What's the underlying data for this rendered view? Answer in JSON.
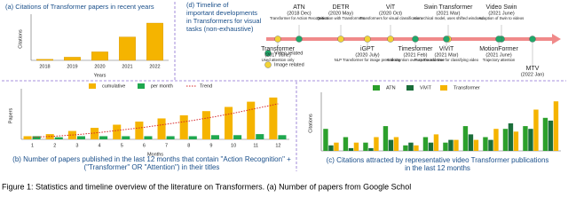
{
  "chart_data": [
    {
      "type": "bar",
      "title": "(a) Citations of Transformer papers in recent years",
      "categories": [
        "2018",
        "2019",
        "2020",
        "2021",
        "2022"
      ],
      "values": [
        0.5,
        1.5,
        4,
        11,
        17.5
      ],
      "color": "#f5b400",
      "ylim": [
        0,
        20
      ],
      "x_label": "Years",
      "y_label": "Citations"
    },
    {
      "type": "bar",
      "caption": [
        "(b) Number of papers published in the last 12 months that contain \"Action Recognition\" +",
        "(\"Transformer\" OR \"Attention\") in their titles"
      ],
      "categories": [
        "1",
        "2",
        "3",
        "4",
        "5",
        "6",
        "7",
        "8",
        "9",
        "10",
        "11",
        "12"
      ],
      "series": [
        {
          "name": "cumulative",
          "color": "#f5b400",
          "values": [
            3,
            5,
            8,
            11,
            14,
            17,
            20,
            23,
            27,
            31,
            36,
            40
          ]
        },
        {
          "name": "per month",
          "color": "#1fa84f",
          "values": [
            3,
            2,
            3,
            3,
            3,
            3,
            3,
            3,
            4,
            4,
            5,
            4
          ]
        },
        {
          "name": "Trend",
          "color": "#d62728",
          "type": "line",
          "values": [
            2,
            3,
            4.5,
            6.5,
            9,
            11.5,
            14.5,
            17.5,
            21,
            25,
            29.5,
            34
          ]
        }
      ],
      "ylim": [
        0,
        45
      ],
      "x_label": "Months",
      "y_label": "Papers"
    },
    {
      "type": "bar",
      "caption": [
        "(c) Citations attracted by representative video Transformer publications",
        "in the last 12 months"
      ],
      "categories": [
        null,
        null,
        null,
        null,
        null,
        null,
        null,
        null,
        null,
        null,
        null,
        null
      ],
      "series": [
        {
          "name": "ATN",
          "color": "#2ca02c",
          "values": [
            8,
            5,
            3,
            9,
            2,
            5,
            3,
            9,
            5,
            8,
            9,
            12
          ]
        },
        {
          "name": "ViViT",
          "color": "#1b6e3a",
          "values": [
            2,
            1,
            1,
            4,
            3,
            3,
            4,
            6,
            4,
            10,
            8,
            11
          ]
        },
        {
          "name": "Transformer",
          "color": "#f5b400",
          "values": [
            3,
            3,
            5,
            5,
            2,
            6,
            4,
            4,
            8,
            7,
            15,
            18
          ]
        }
      ],
      "ylim": [
        0,
        20
      ],
      "y_label": "Citations"
    }
  ],
  "timeline": {
    "title": [
      "(d)  Timeline of",
      "important developments",
      "in Transformers for visual",
      "tasks (non-exhaustive)"
    ],
    "legend": [
      {
        "label": "Video related",
        "color": "#1fa86a"
      },
      {
        "label": "Image related",
        "color": "#f2d335"
      }
    ],
    "events": [
      {
        "name": "Transformer",
        "date": "(2017 June)",
        "note": "Used attention only",
        "color": "#f2d335"
      },
      {
        "name": "ATN",
        "date": "(2018 Dec)",
        "note": "Transformer for Action Recognition",
        "color": "#1fa86a"
      },
      {
        "name": "DETR",
        "date": "(2020 May)",
        "note": "Detection with Transformers",
        "color": "#f2d335"
      },
      {
        "name": "iGPT",
        "date": "(2020 July)",
        "note": "NLP Transformer for image pre-training",
        "color": "#f2d335"
      },
      {
        "name": "ViT",
        "date": "(2020 Oct)",
        "note": "Transformers for visual classification",
        "color": "#f2d335"
      },
      {
        "name": "Timesformer",
        "date": "(2021 Feb)",
        "note": "Self-attention over space and time",
        "color": "#1fa86a"
      },
      {
        "name": "Swin Transformer",
        "date": "(2021 Mar)",
        "note": "Hierarchical model, uses shifted windows",
        "color": "#f2d335"
      },
      {
        "name": "ViViT",
        "date": "(2021 Mar)",
        "note": "Pure Transformer for classifying video",
        "color": "#1fa86a"
      },
      {
        "name": "Video Swin",
        "date": "(2021 June)",
        "note": "Adaption of Swin to videos",
        "color": "#1fa86a"
      },
      {
        "name": "MotionFormer",
        "date": "(2021 June)",
        "note": "Trajectory attention",
        "color": "#1fa86a"
      },
      {
        "name": "MTV",
        "date": "(2022 Jan)",
        "note": "",
        "color": "#1fa86a"
      }
    ]
  },
  "figure_caption": "Figure 1: Statistics and timeline overview of the literature on Transformers. (a) Number of papers from Google Schol"
}
